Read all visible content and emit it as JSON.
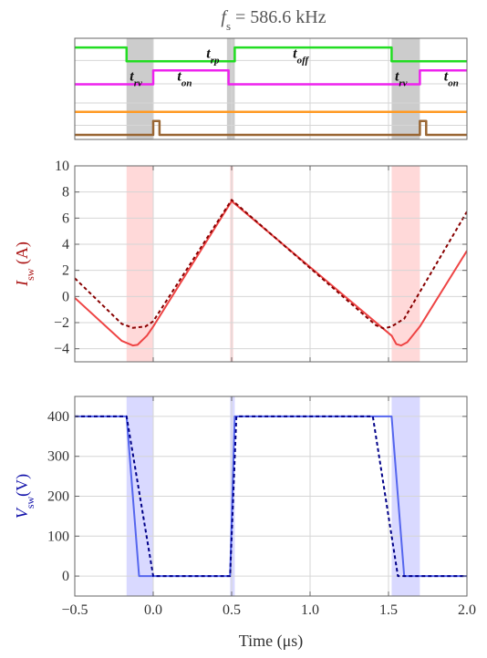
{
  "title": {
    "sym": "f",
    "sub": "s",
    "rest": " = 586.6 kHz"
  },
  "chart_data": [
    {
      "type": "line",
      "name": "gate-signals",
      "xlim": [
        -0.5,
        2.0
      ],
      "ylim": [
        0,
        4.4
      ],
      "series": [
        {
          "name": "",
          "color": "#22dd22",
          "points": [
            [
              -0.5,
              4
            ],
            [
              -0.17,
              4
            ],
            [
              -0.17,
              3.4
            ],
            [
              0.52,
              3.4
            ],
            [
              0.52,
              4
            ],
            [
              1.52,
              4
            ],
            [
              1.52,
              3.4
            ],
            [
              2.0,
              3.4
            ]
          ]
        },
        {
          "name": "",
          "color": "#ee22ee",
          "points": [
            [
              -0.5,
              2.4
            ],
            [
              0.0,
              2.4
            ],
            [
              0.0,
              3.0
            ],
            [
              0.48,
              3.0
            ],
            [
              0.48,
              2.4
            ],
            [
              1.7,
              2.4
            ],
            [
              1.7,
              3.0
            ],
            [
              2.0,
              3.0
            ]
          ]
        },
        {
          "name": "",
          "color": "#ff9922",
          "points": [
            [
              -0.5,
              1.2
            ],
            [
              2.0,
              1.2
            ]
          ]
        },
        {
          "name": "",
          "color": "#996633",
          "points": [
            [
              -0.5,
              0.2
            ],
            [
              0.0,
              0.2
            ],
            [
              0.0,
              0.8
            ],
            [
              0.04,
              0.8
            ],
            [
              0.04,
              0.2
            ],
            [
              1.7,
              0.2
            ],
            [
              1.7,
              0.8
            ],
            [
              1.74,
              0.8
            ],
            [
              1.74,
              0.2
            ],
            [
              2.0,
              0.2
            ]
          ]
        }
      ],
      "shaded": [
        {
          "x0": -0.17,
          "x1": 0.0,
          "color": "#bbbbbb"
        },
        {
          "x0": 0.47,
          "x1": 0.52,
          "color": "#bbbbbb"
        },
        {
          "x0": 1.52,
          "x1": 1.7,
          "color": "#bbbbbb"
        }
      ],
      "gridlines_x": [
        0,
        0.5,
        1.0,
        1.5,
        2.0
      ],
      "annotations": [
        {
          "base": "t",
          "sub": "rp",
          "x": 0.38,
          "y": 3.55
        },
        {
          "base": "t",
          "sub": "off",
          "x": 0.94,
          "y": 3.55
        },
        {
          "base": "t",
          "sub": "rv",
          "x": -0.11,
          "y": 2.55
        },
        {
          "base": "t",
          "sub": "on",
          "x": 0.2,
          "y": 2.55
        },
        {
          "base": "t",
          "sub": "rv",
          "x": 1.58,
          "y": 2.55
        },
        {
          "base": "t",
          "sub": "on",
          "x": 1.9,
          "y": 2.55
        }
      ]
    },
    {
      "type": "line",
      "name": "switch-current",
      "ylabel_main": "I",
      "ylabel_sub": "sw",
      "ylabel_unit": " (A)",
      "ylabel_color": "#aa1111",
      "xlim": [
        -0.5,
        2.0
      ],
      "ylim": [
        -5,
        10
      ],
      "yticks": [
        -4,
        -2,
        0,
        2,
        4,
        6,
        8,
        10
      ],
      "xticks": [
        -0.5,
        0.0,
        0.5,
        1.0,
        1.5,
        2.0
      ],
      "shaded": [
        {
          "x0": -0.17,
          "x1": 0.0,
          "color": "#ffcccc"
        },
        {
          "x0": 0.49,
          "x1": 0.51,
          "color": "#ffcccc"
        },
        {
          "x0": 1.52,
          "x1": 1.7,
          "color": "#ffcccc"
        }
      ],
      "series": [
        {
          "name": "",
          "color": "#ee4444",
          "dash": "",
          "width": 2,
          "points": [
            [
              -0.5,
              -0.1
            ],
            [
              -0.2,
              -3.4
            ],
            [
              -0.13,
              -3.75
            ],
            [
              -0.1,
              -3.7
            ],
            [
              -0.04,
              -3.0
            ],
            [
              0.0,
              -2.3
            ],
            [
              0.5,
              7.3
            ],
            [
              1.52,
              -3.0
            ],
            [
              1.55,
              -3.65
            ],
            [
              1.58,
              -3.75
            ],
            [
              1.62,
              -3.5
            ],
            [
              1.7,
              -2.3
            ],
            [
              2.0,
              3.5
            ]
          ]
        },
        {
          "name": "",
          "color": "#880000",
          "dash": "4,3",
          "width": 2,
          "points": [
            [
              -0.5,
              1.4
            ],
            [
              -0.2,
              -2.1
            ],
            [
              -0.13,
              -2.4
            ],
            [
              -0.05,
              -2.3
            ],
            [
              0.0,
              -1.9
            ],
            [
              0.5,
              7.4
            ],
            [
              1.42,
              -2.2
            ],
            [
              1.47,
              -2.45
            ],
            [
              1.52,
              -2.3
            ],
            [
              1.6,
              -1.7
            ],
            [
              2.0,
              6.5
            ]
          ]
        }
      ]
    },
    {
      "type": "line",
      "name": "switch-voltage",
      "ylabel_main": "V",
      "ylabel_sub": "sw",
      "ylabel_unit": "(V)",
      "ylabel_color": "#1111aa",
      "xlabel": "Time (μs)",
      "xlim": [
        -0.5,
        2.0
      ],
      "ylim": [
        -50,
        450
      ],
      "yticks": [
        0,
        100,
        200,
        300,
        400
      ],
      "xticks": [
        -0.5,
        0.0,
        0.5,
        1.0,
        1.5,
        2.0
      ],
      "xticklabels": [
        "−0.5",
        "0.0",
        "0.5",
        "1.0",
        "1.5",
        "2.0"
      ],
      "shaded": [
        {
          "x0": -0.17,
          "x1": 0.0,
          "color": "#ccccff"
        },
        {
          "x0": 0.49,
          "x1": 0.52,
          "color": "#ccccff"
        },
        {
          "x0": 1.52,
          "x1": 1.7,
          "color": "#ccccff"
        }
      ],
      "series": [
        {
          "name": "",
          "color": "#5566ee",
          "dash": "",
          "width": 2,
          "points": [
            [
              -0.5,
              400
            ],
            [
              -0.17,
              400
            ],
            [
              -0.09,
              0
            ],
            [
              0.49,
              0
            ],
            [
              0.52,
              400
            ],
            [
              1.52,
              400
            ],
            [
              1.6,
              0
            ],
            [
              2.0,
              0
            ]
          ]
        },
        {
          "name": "",
          "color": "#000088",
          "dash": "4,3",
          "width": 2,
          "points": [
            [
              -0.5,
              400
            ],
            [
              -0.17,
              400
            ],
            [
              0.0,
              0
            ],
            [
              0.49,
              0
            ],
            [
              0.53,
              400
            ],
            [
              1.4,
              400
            ],
            [
              1.56,
              0
            ],
            [
              2.0,
              0
            ]
          ]
        }
      ]
    }
  ]
}
